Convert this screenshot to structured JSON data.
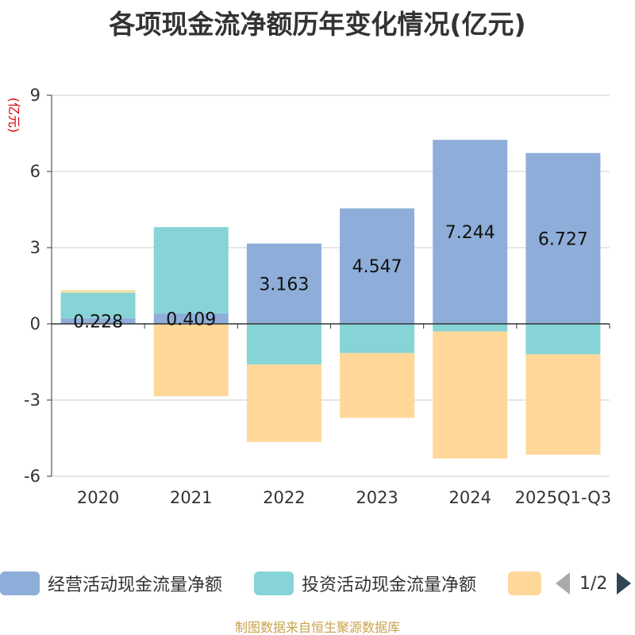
{
  "title": "各项现金流净额历年变化情况(亿元)",
  "source": "制图数据来自恒生聚源数据库",
  "legend_page": "1/2",
  "colors": {
    "operating": "#8eaed9",
    "investing": "#86d4d6",
    "financing": "#ffd799",
    "financing_small": "#f2e2a0",
    "grid": "#cccccc",
    "axis": "#333333",
    "unit": "#dd0000"
  },
  "chart_data": {
    "type": "bar",
    "stacked": true,
    "title": "各项现金流净额历年变化情况(亿元)",
    "ylabel": "(亿元)",
    "ylim": [
      -6,
      9
    ],
    "yticks": [
      9,
      6,
      3,
      0,
      -3,
      -6
    ],
    "categories": [
      "2020",
      "2021",
      "2022",
      "2023",
      "2024",
      "2025Q1-Q3"
    ],
    "series": [
      {
        "name": "经营活动现金流量净额",
        "values": [
          0.228,
          0.409,
          3.163,
          4.547,
          7.244,
          6.727
        ]
      },
      {
        "name": "投资活动现金流量净额",
        "values": [
          1.0,
          3.4,
          -1.6,
          -1.15,
          -0.3,
          -1.2
        ]
      },
      {
        "name": "",
        "values": [
          0.1,
          -2.85,
          -3.05,
          -2.55,
          -5.0,
          -3.95
        ]
      }
    ],
    "data_labels": [
      "0.228",
      "0.409",
      "3.163",
      "4.547",
      "7.244",
      "6.727"
    ]
  }
}
